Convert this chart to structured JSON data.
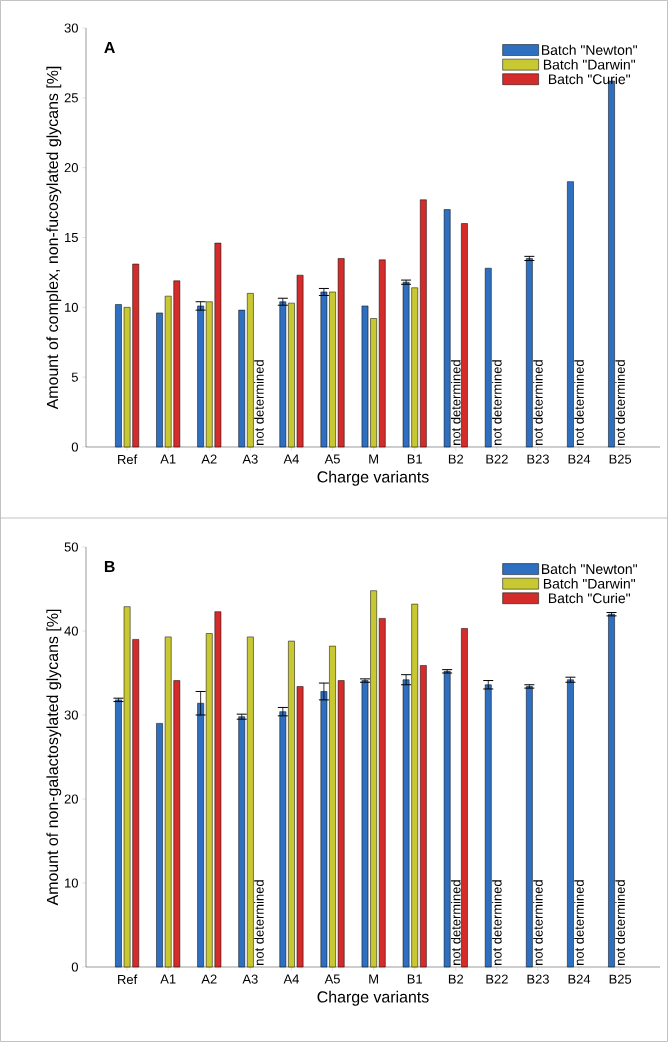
{
  "chart_data": [
    {
      "type": "bar",
      "title": "A",
      "xlabel": "Charge variants",
      "ylabel": "Amount of complex, non-fucosylated glycans [%]",
      "categories": [
        "Ref",
        "A1",
        "A2",
        "A3",
        "A4",
        "A5",
        "M",
        "B1",
        "B2",
        "B22",
        "B23",
        "B24",
        "B25"
      ],
      "series": [
        {
          "name": "Batch \"Newton\"",
          "color": "#2f6fbf",
          "values": [
            10.2,
            9.6,
            10.1,
            9.8,
            10.4,
            11.1,
            10.1,
            11.8,
            17.0,
            12.8,
            13.5,
            19.0,
            26.2
          ],
          "errors": [
            null,
            null,
            0.3,
            null,
            0.25,
            0.25,
            null,
            0.15,
            null,
            null,
            0.15,
            null,
            null
          ]
        },
        {
          "name": "Batch \"Darwin\"",
          "color": "#c8c832",
          "values": [
            10.0,
            10.8,
            10.4,
            11.0,
            10.3,
            11.1,
            9.2,
            11.4,
            null,
            null,
            null,
            null,
            null
          ]
        },
        {
          "name": "Batch \"Curie\"",
          "color": "#d42b2b",
          "values": [
            13.1,
            11.9,
            14.6,
            null,
            12.3,
            13.5,
            13.4,
            17.7,
            16.0,
            null,
            null,
            null,
            null
          ]
        }
      ],
      "ylim": [
        0,
        30
      ],
      "yticks": [
        0,
        5,
        10,
        15,
        20,
        25,
        30
      ],
      "legend": "top right",
      "annotations": [
        "not determined",
        "not determined",
        "not determined",
        "not determined",
        "not determined",
        "not determined"
      ]
    },
    {
      "type": "bar",
      "title": "B",
      "xlabel": "Charge variants",
      "ylabel": "Amount of non-galactosylated glycans [%]",
      "categories": [
        "Ref",
        "A1",
        "A2",
        "A3",
        "A4",
        "A5",
        "M",
        "B1",
        "B2",
        "B22",
        "B23",
        "B24",
        "B25"
      ],
      "series": [
        {
          "name": "Batch \"Newton\"",
          "color": "#2f6fbf",
          "values": [
            31.8,
            29.0,
            31.4,
            29.8,
            30.4,
            32.8,
            34.1,
            34.2,
            35.2,
            33.6,
            33.4,
            34.2,
            42.0
          ],
          "errors": [
            0.2,
            null,
            1.4,
            0.3,
            0.5,
            1.0,
            0.2,
            0.6,
            0.2,
            0.5,
            0.2,
            0.3,
            0.2
          ]
        },
        {
          "name": "Batch \"Darwin\"",
          "color": "#c8c832",
          "values": [
            42.9,
            39.3,
            39.7,
            39.3,
            38.8,
            38.2,
            44.8,
            43.2,
            null,
            null,
            null,
            null,
            null
          ]
        },
        {
          "name": "Batch \"Curie\"",
          "color": "#d42b2b",
          "values": [
            39.0,
            34.1,
            42.3,
            null,
            33.4,
            34.1,
            41.5,
            35.9,
            40.3,
            null,
            null,
            null,
            null
          ]
        }
      ],
      "ylim": [
        0,
        50
      ],
      "yticks": [
        0,
        10,
        20,
        30,
        40,
        50
      ],
      "legend": "top right",
      "annotations": [
        "not determined",
        "not determined",
        "not determined",
        "not determined",
        "not determined",
        "not determined"
      ]
    }
  ]
}
